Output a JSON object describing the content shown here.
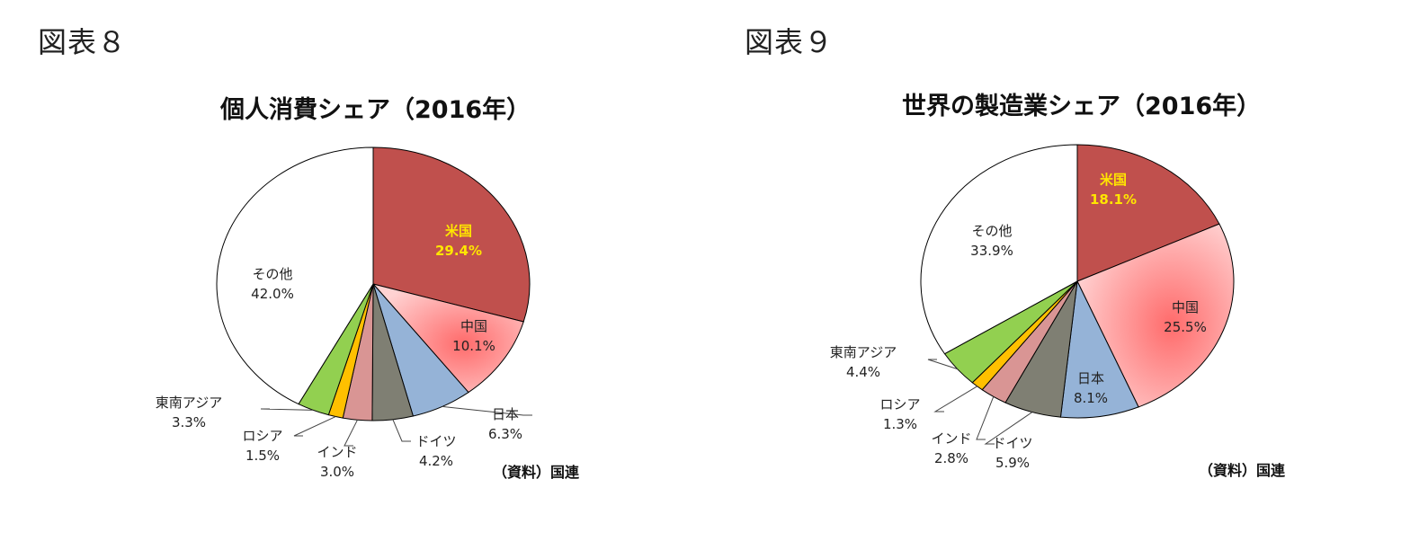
{
  "figures": [
    {
      "figure_label": "図表８",
      "source": "（資料）国連"
    },
    {
      "figure_label": "図表９",
      "source": "（資料）国連"
    }
  ],
  "colors": {
    "us": "#c0504d",
    "china_center": "#ff6b6b",
    "china_edge": "#ffd2d2",
    "japan": "#95b3d7",
    "germany": "#7f7f73",
    "india": "#d99594",
    "russia": "#ffc000",
    "sea": "#92d050",
    "other": "#ffffff",
    "highlight_text": "#ffe600"
  },
  "chart_data": [
    {
      "type": "pie",
      "title": "個人消費シェア（2016年）",
      "slices": [
        {
          "label": "米国",
          "value": 29.4,
          "value_text": "29.4%",
          "color_key": "us"
        },
        {
          "label": "中国",
          "value": 10.1,
          "value_text": "10.1%",
          "color_key": "china"
        },
        {
          "label": "日本",
          "value": 6.3,
          "value_text": "6.3%",
          "color_key": "japan"
        },
        {
          "label": "ドイツ",
          "value": 4.2,
          "value_text": "4.2%",
          "color_key": "germany"
        },
        {
          "label": "インド",
          "value": 3.0,
          "value_text": "3.0%",
          "color_key": "india"
        },
        {
          "label": "ロシア",
          "value": 1.5,
          "value_text": "1.5%",
          "color_key": "russia"
        },
        {
          "label": "東南アジア",
          "value": 3.3,
          "value_text": "3.3%",
          "color_key": "sea"
        },
        {
          "label": "その他",
          "value": 42.0,
          "value_text": "42.0%",
          "color_key": "other"
        }
      ]
    },
    {
      "type": "pie",
      "title": "世界の製造業シェア（2016年）",
      "slices": [
        {
          "label": "米国",
          "value": 18.1,
          "value_text": "18.1%",
          "color_key": "us"
        },
        {
          "label": "中国",
          "value": 25.5,
          "value_text": "25.5%",
          "color_key": "china"
        },
        {
          "label": "日本",
          "value": 8.1,
          "value_text": "8.1%",
          "color_key": "japan"
        },
        {
          "label": "ドイツ",
          "value": 5.9,
          "value_text": "5.9%",
          "color_key": "germany"
        },
        {
          "label": "インド",
          "value": 2.8,
          "value_text": "2.8%",
          "color_key": "india"
        },
        {
          "label": "ロシア",
          "value": 1.3,
          "value_text": "1.3%",
          "color_key": "russia"
        },
        {
          "label": "東南アジア",
          "value": 4.4,
          "value_text": "4.4%",
          "color_key": "sea"
        },
        {
          "label": "その他",
          "value": 33.9,
          "value_text": "33.9%",
          "color_key": "other"
        }
      ]
    }
  ]
}
